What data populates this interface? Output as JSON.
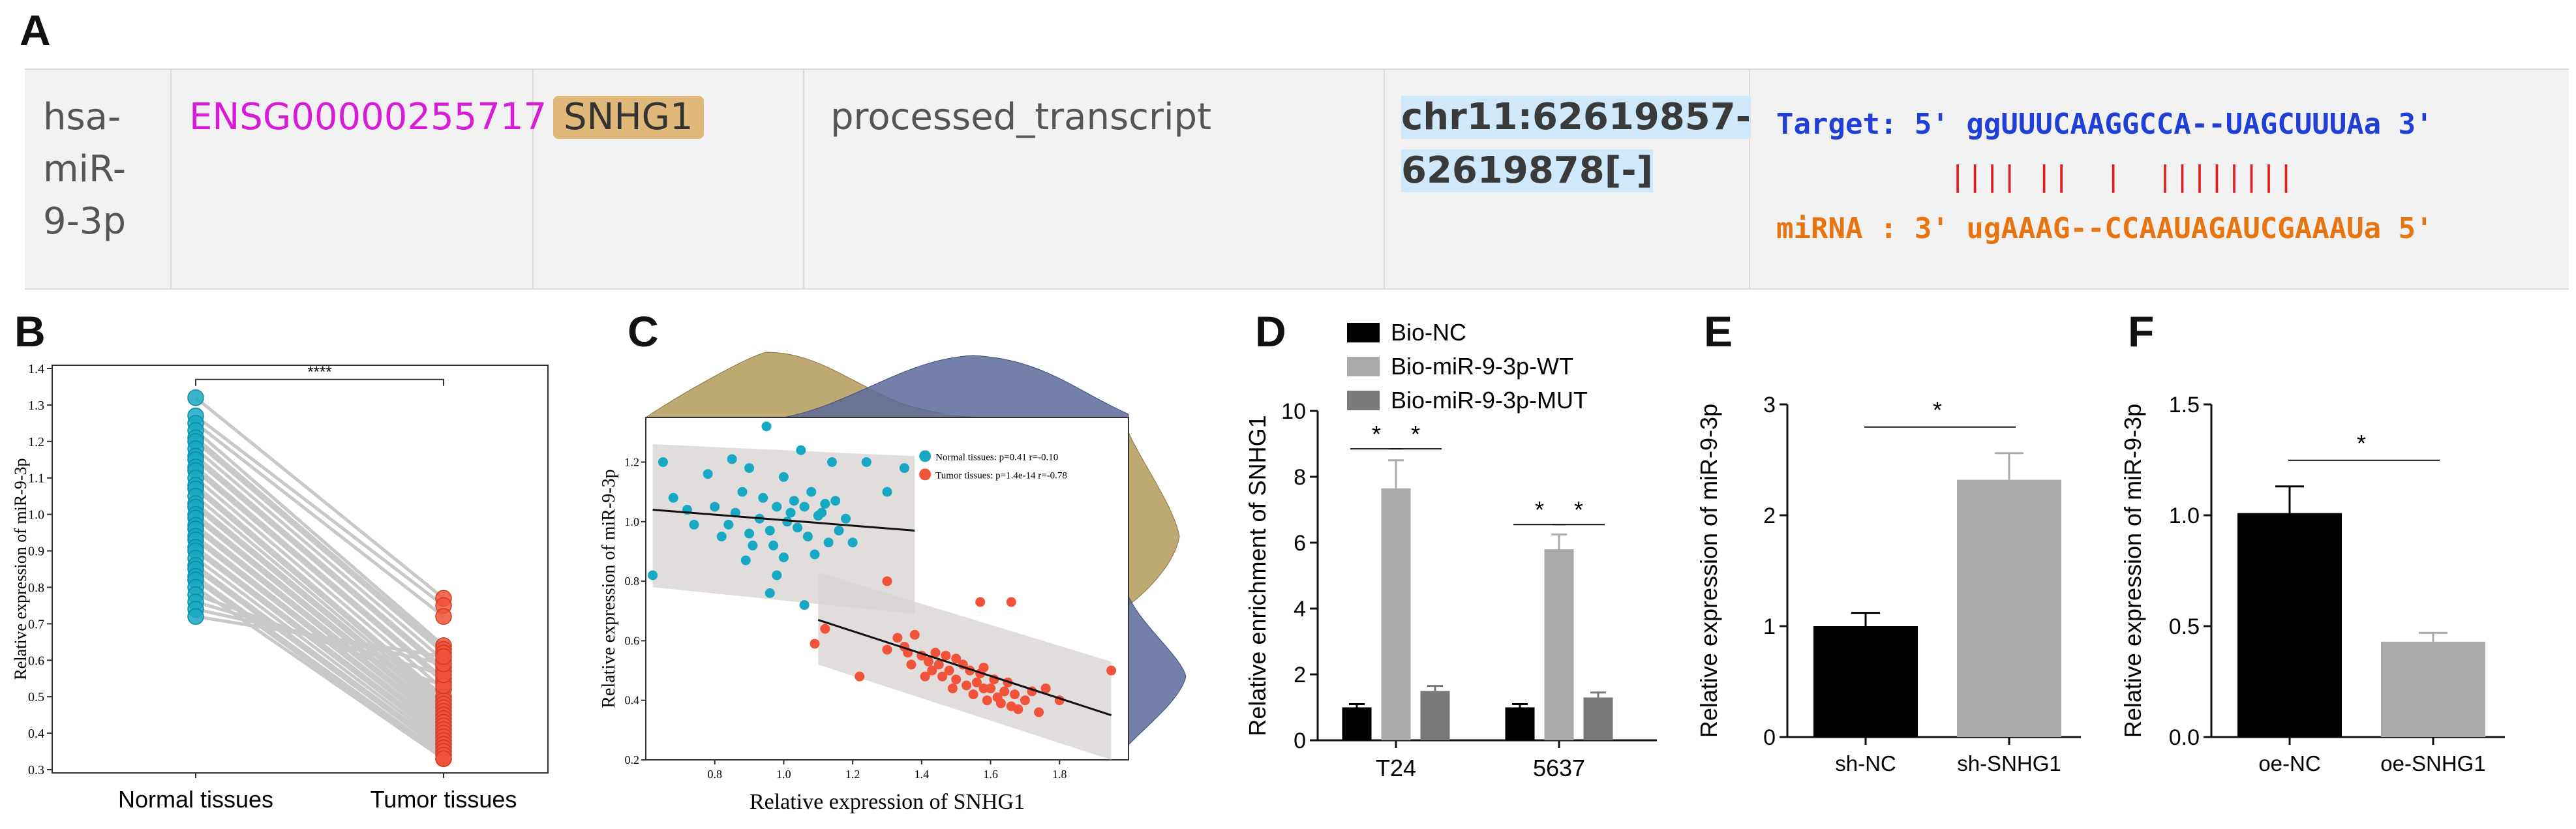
{
  "panels": {
    "a": "A",
    "b": "B",
    "c": "C",
    "d": "D",
    "e": "E",
    "f": "F"
  },
  "table": {
    "mirna": [
      "hsa-",
      "miR-",
      "9-3p"
    ],
    "ensembl": "ENSG00000255717",
    "gene": "SNHG1",
    "biotype": "processed_transcript",
    "locus": [
      "chr11:62619857-",
      "62619878[-]"
    ],
    "target_line": "Target: 5' ggUUUCAAGGCCA--UAGCUUUAa 3'",
    "pair_line": "          |||| ||  |  ||||||||",
    "mirna_line": "miRNA : 3' ugAAAG--CCAAUAGAUCGAAAUa 5'",
    "colors": {
      "ensembl": "#d81bd8",
      "gene_bg": "#dfb87a",
      "locus_bg": "#cfe9fb",
      "target": "#1f3fd6",
      "mirna": "#e87410",
      "pair": "#e02020"
    }
  },
  "chart_data": [
    {
      "panel": "B",
      "type": "scatter",
      "title": "",
      "ylabel": "Relative expression of miR-9-3p",
      "xlabel": "",
      "categories": [
        "Normal tissues",
        "Tumor tissues"
      ],
      "ylim": [
        0.3,
        1.4
      ],
      "yticks": [
        "0.3",
        "0.4",
        "0.5",
        "0.6",
        "0.7",
        "0.8",
        "0.9",
        "1.0",
        "1.1",
        "1.2",
        "1.3",
        "1.4"
      ],
      "significance": "****",
      "colors": {
        "normal": "#17a8c4",
        "tumor": "#f0533a",
        "line": "#c8c8c8"
      },
      "pairs": [
        [
          1.32,
          0.77
        ],
        [
          1.27,
          0.75
        ],
        [
          1.25,
          0.72
        ],
        [
          1.23,
          0.64
        ],
        [
          1.21,
          0.63
        ],
        [
          1.2,
          0.62
        ],
        [
          1.18,
          0.6
        ],
        [
          1.16,
          0.58
        ],
        [
          1.15,
          0.57
        ],
        [
          1.13,
          0.55
        ],
        [
          1.12,
          0.54
        ],
        [
          1.1,
          0.52
        ],
        [
          1.08,
          0.5
        ],
        [
          1.07,
          0.49
        ],
        [
          1.05,
          0.48
        ],
        [
          1.03,
          0.47
        ],
        [
          1.02,
          0.46
        ],
        [
          1.0,
          0.45
        ],
        [
          0.99,
          0.44
        ],
        [
          0.97,
          0.43
        ],
        [
          0.96,
          0.42
        ],
        [
          0.94,
          0.41
        ],
        [
          0.93,
          0.4
        ],
        [
          0.91,
          0.39
        ],
        [
          0.9,
          0.38
        ],
        [
          0.88,
          0.37
        ],
        [
          0.86,
          0.36
        ],
        [
          0.85,
          0.35
        ],
        [
          0.83,
          0.34
        ],
        [
          0.82,
          0.33
        ],
        [
          0.8,
          0.33
        ],
        [
          0.78,
          0.53
        ],
        [
          0.76,
          0.56
        ],
        [
          0.74,
          0.59
        ],
        [
          0.72,
          0.61
        ]
      ]
    },
    {
      "panel": "C",
      "type": "scatter",
      "xlabel": "Relative expression of SNHG1",
      "ylabel": "Relative expression of miR-9-3p",
      "xlim": [
        0.6,
        2.0
      ],
      "ylim": [
        0.2,
        1.35
      ],
      "xticks": [
        "0.8",
        "1.0",
        "1.2",
        "1.4",
        "1.6",
        "1.8"
      ],
      "yticks": [
        "0.2",
        "0.4",
        "0.6",
        "0.8",
        "1.0",
        "1.2"
      ],
      "legend": [
        "Normal tissues: p=0.41 r=-0.10",
        "Tumor tissues: p=1.4e-14 r=-0.78"
      ],
      "colors": {
        "normal": "#17a8c4",
        "tumor": "#f0533a",
        "kde_normal": "#b49a5a",
        "kde_tumor": "#5b6a9a",
        "band": "#d8d2d2"
      },
      "normal_fit": [
        [
          0.62,
          1.04
        ],
        [
          1.38,
          0.97
        ]
      ],
      "tumor_fit": [
        [
          1.1,
          0.67
        ],
        [
          1.95,
          0.35
        ]
      ],
      "normal": [
        [
          0.62,
          0.82
        ],
        [
          0.65,
          1.2
        ],
        [
          0.68,
          1.08
        ],
        [
          0.72,
          1.04
        ],
        [
          0.74,
          0.99
        ],
        [
          0.78,
          1.16
        ],
        [
          0.8,
          1.05
        ],
        [
          0.82,
          0.95
        ],
        [
          0.84,
          0.99
        ],
        [
          0.85,
          1.21
        ],
        [
          0.86,
          1.03
        ],
        [
          0.88,
          1.1
        ],
        [
          0.89,
          0.87
        ],
        [
          0.9,
          1.18
        ],
        [
          0.9,
          0.96
        ],
        [
          0.91,
          0.92
        ],
        [
          0.93,
          1.01
        ],
        [
          0.94,
          1.08
        ],
        [
          0.95,
          1.32
        ],
        [
          0.96,
          0.97
        ],
        [
          0.97,
          0.92
        ],
        [
          0.98,
          1.05
        ],
        [
          1.0,
          1.15
        ],
        [
          1.0,
          0.88
        ],
        [
          1.01,
          1.0
        ],
        [
          1.02,
          1.03
        ],
        [
          1.03,
          1.07
        ],
        [
          1.04,
          0.98
        ],
        [
          1.05,
          1.24
        ],
        [
          1.06,
          1.05
        ],
        [
          1.07,
          0.95
        ],
        [
          1.08,
          1.1
        ],
        [
          1.09,
          0.89
        ],
        [
          1.1,
          1.02
        ],
        [
          1.11,
          1.03
        ],
        [
          1.12,
          1.06
        ],
        [
          1.13,
          0.93
        ],
        [
          1.14,
          1.2
        ],
        [
          1.15,
          1.07
        ],
        [
          1.16,
          0.97
        ],
        [
          1.18,
          1.01
        ],
        [
          1.2,
          0.93
        ],
        [
          1.24,
          1.2
        ],
        [
          1.3,
          1.1
        ],
        [
          1.35,
          1.18
        ],
        [
          0.98,
          0.82
        ],
        [
          0.96,
          0.76
        ],
        [
          1.06,
          0.72
        ]
      ],
      "tumor": [
        [
          1.09,
          0.59
        ],
        [
          1.12,
          0.64
        ],
        [
          1.22,
          0.48
        ],
        [
          1.3,
          0.57
        ],
        [
          1.33,
          0.61
        ],
        [
          1.35,
          0.58
        ],
        [
          1.36,
          0.56
        ],
        [
          1.38,
          0.62
        ],
        [
          1.4,
          0.55
        ],
        [
          1.42,
          0.53
        ],
        [
          1.43,
          0.5
        ],
        [
          1.44,
          0.56
        ],
        [
          1.45,
          0.52
        ],
        [
          1.46,
          0.48
        ],
        [
          1.47,
          0.55
        ],
        [
          1.48,
          0.5
        ],
        [
          1.5,
          0.47
        ],
        [
          1.5,
          0.54
        ],
        [
          1.52,
          0.52
        ],
        [
          1.53,
          0.45
        ],
        [
          1.54,
          0.5
        ],
        [
          1.55,
          0.42
        ],
        [
          1.56,
          0.46
        ],
        [
          1.57,
          0.49
        ],
        [
          1.58,
          0.44
        ],
        [
          1.59,
          0.4
        ],
        [
          1.6,
          0.44
        ],
        [
          1.61,
          0.47
        ],
        [
          1.62,
          0.41
        ],
        [
          1.63,
          0.39
        ],
        [
          1.64,
          0.43
        ],
        [
          1.65,
          0.46
        ],
        [
          1.66,
          0.38
        ],
        [
          1.67,
          0.42
        ],
        [
          1.68,
          0.37
        ],
        [
          1.7,
          0.4
        ],
        [
          1.72,
          0.43
        ],
        [
          1.74,
          0.36
        ],
        [
          1.76,
          0.44
        ],
        [
          1.8,
          0.4
        ],
        [
          1.3,
          0.8
        ],
        [
          1.57,
          0.73
        ],
        [
          1.66,
          0.73
        ],
        [
          1.95,
          0.5
        ],
        [
          1.41,
          0.48
        ],
        [
          1.37,
          0.52
        ],
        [
          1.49,
          0.44
        ],
        [
          1.58,
          0.51
        ]
      ]
    },
    {
      "panel": "D",
      "type": "bar",
      "ylabel": "Relative enrichment of SNHG1",
      "xlabel": "",
      "categories": [
        "T24",
        "5637"
      ],
      "ylim": [
        0,
        10
      ],
      "yticks": [
        "0",
        "2",
        "4",
        "6",
        "8",
        "10"
      ],
      "series": [
        {
          "name": "Bio-NC",
          "color": "#000000",
          "values": [
            1.0,
            1.0
          ],
          "errors": [
            0.1,
            0.1
          ]
        },
        {
          "name": "Bio-miR-9-3p-WT",
          "color": "#aaaaaa",
          "values": [
            7.65,
            5.8
          ],
          "errors": [
            0.85,
            0.45
          ]
        },
        {
          "name": "Bio-miR-9-3p-MUT",
          "color": "#7a7a7a",
          "values": [
            1.5,
            1.3
          ],
          "errors": [
            0.15,
            0.15
          ]
        }
      ],
      "significance": [
        "*",
        "*",
        "*",
        "*"
      ]
    },
    {
      "panel": "E",
      "type": "bar",
      "ylabel": "Relative expression of miR-9-3p",
      "xlabel": "",
      "categories": [
        "sh-NC",
        "sh-SNHG1"
      ],
      "ylim": [
        0,
        3
      ],
      "yticks": [
        "0",
        "1",
        "2",
        "3"
      ],
      "values": [
        1.0,
        2.32
      ],
      "errors": [
        0.12,
        0.24
      ],
      "colors": [
        "#000000",
        "#aaaaaa"
      ],
      "significance": "*"
    },
    {
      "panel": "F",
      "type": "bar",
      "ylabel": "Relative expression of miR-9-3p",
      "xlabel": "",
      "categories": [
        "oe-NC",
        "oe-SNHG1"
      ],
      "ylim": [
        0,
        1.5
      ],
      "yticks": [
        "0.0",
        "0.5",
        "1.0",
        "1.5"
      ],
      "values": [
        1.01,
        0.43
      ],
      "errors": [
        0.12,
        0.04
      ],
      "colors": [
        "#000000",
        "#aaaaaa"
      ],
      "significance": "*"
    }
  ]
}
